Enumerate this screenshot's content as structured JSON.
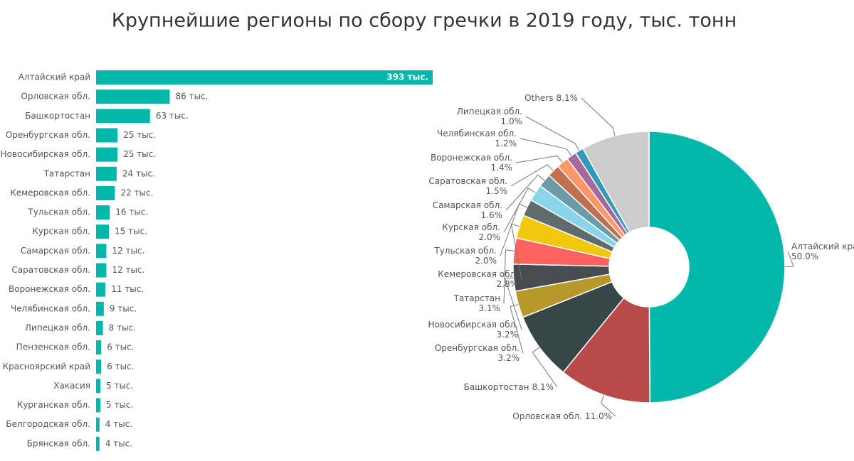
{
  "title": "Крупнейшие регионы по сбору гречки в 2019 году, тыс. тонн",
  "chart_data": [
    {
      "type": "bar",
      "orientation": "horizontal",
      "color": "#01b8aa",
      "categories": [
        "Алтайский край",
        "Орловская обл.",
        "Башкортостан",
        "Оренбургская обл.",
        "Новосибирская обл.",
        "Татарстан",
        "Кемеровская обл.",
        "Тульская обл.",
        "Курская обл.",
        "Самарская обл.",
        "Саратовская обл.",
        "Воронежская обл.",
        "Челябинская обл.",
        "Липецкая обл.",
        "Пензенская обл.",
        "Красноярский край",
        "Хакасия",
        "Курганская обл.",
        "Белгородская обл.",
        "Брянская обл."
      ],
      "values": [
        393,
        86,
        63,
        25,
        25,
        24,
        22,
        16,
        15,
        12,
        12,
        11,
        9,
        8,
        6,
        6,
        5,
        5,
        4,
        4
      ],
      "value_labels": [
        "393 тыс.",
        "86 тыс.",
        "63 тыс.",
        "25 тыс.",
        "25 тыс.",
        "24 тыс.",
        "22 тыс.",
        "16 тыс.",
        "15 тыс.",
        "12 тыс.",
        "12 тыс.",
        "11 тыс.",
        "9 тыс.",
        "8 тыс.",
        "6 тыс.",
        "6 тыс.",
        "5 тыс.",
        "5 тыс.",
        "4 тыс.",
        "4 тыс."
      ]
    },
    {
      "type": "donut",
      "categories": [
        "Алтайский край",
        "Орловская обл.",
        "Башкортостан",
        "Оренбургская обл.",
        "Новосибирская обл.",
        "Татарстан",
        "Кемеровская обл.",
        "Тульская обл.",
        "Курская обл.",
        "Самарская обл.",
        "Саратовская обл.",
        "Воронежская обл.",
        "Челябинская обл.",
        "Липецкая обл.",
        "Others"
      ],
      "values": [
        50.0,
        11.0,
        8.1,
        3.2,
        3.2,
        3.1,
        2.8,
        2.0,
        2.0,
        1.6,
        1.5,
        1.4,
        1.2,
        1.0,
        8.1
      ],
      "value_labels": [
        "50.0%",
        "11.0%",
        "8.1%",
        "3.2%",
        "3.2%",
        "3.1%",
        "2.8%",
        "2.0%",
        "2.0%",
        "1.6%",
        "1.5%",
        "1.4%",
        "1.2%",
        "1.0%",
        "8.1%"
      ],
      "colors": [
        "#01b8aa",
        "#b84a4a",
        "#374649",
        "#b8982a",
        "#454d50",
        "#fd625e",
        "#f2c80f",
        "#5f6b6d",
        "#8ad4eb",
        "#6b9aa8",
        "#c0704e",
        "#fe9666",
        "#a66999",
        "#3599b8",
        "#cccccc"
      ]
    }
  ]
}
